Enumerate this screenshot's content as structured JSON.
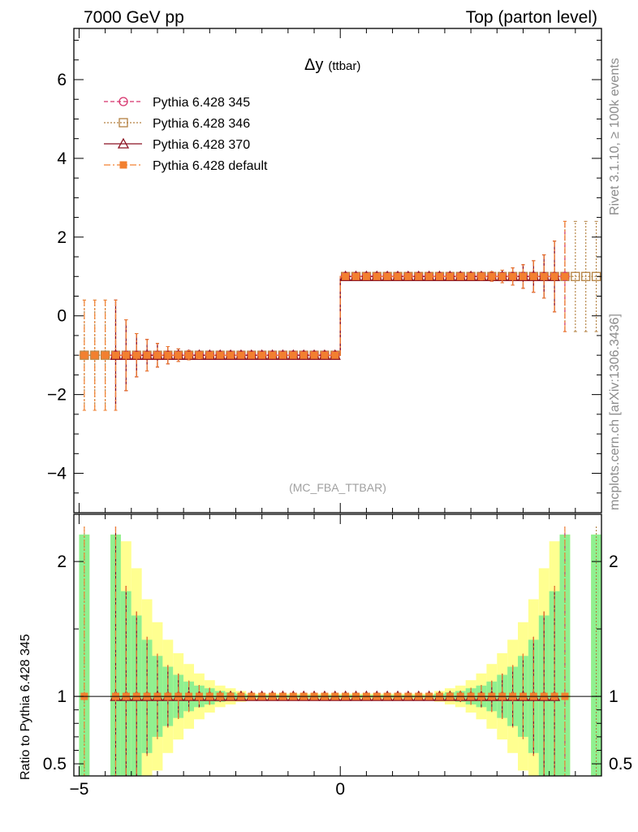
{
  "header": {
    "left_title": "7000 GeV pp",
    "right_title": "Top (parton level)"
  },
  "plot_title": "Δy",
  "plot_title_sub": "(ttbar)",
  "analysis_label": "(MC_FBA_TTBAR)",
  "side_texts": {
    "rivet": "Rivet 3.1.10, ≥ 100k events",
    "mcplots": "mcplots.cern.ch [arXiv:1306.3436]"
  },
  "ratio_ylabel": "Ratio to Pythia 6.428 345",
  "legend": [
    {
      "label": "Pythia 6.428 345",
      "color": "#d6336c",
      "marker": "circle-open",
      "dash": "5,3"
    },
    {
      "label": "Pythia 6.428 346",
      "color": "#b38040",
      "marker": "square-open",
      "dash": "2,2"
    },
    {
      "label": "Pythia 6.428 370",
      "color": "#8b1020",
      "marker": "triangle-open",
      "dash": ""
    },
    {
      "label": "Pythia 6.428 default",
      "color": "#f28030",
      "marker": "square-filled",
      "dash": "8,3,2,3"
    }
  ],
  "chart_data": [
    {
      "type": "line",
      "panel": "main",
      "xlim": [
        -5.1,
        5.0
      ],
      "ylim": [
        -5.0,
        7.3
      ],
      "yticks": [
        "−4",
        "−2",
        "0",
        "2",
        "4",
        "6"
      ],
      "xticks": [
        "−5",
        "0"
      ],
      "bin_width": 0.2,
      "series": [
        {
          "name": "Pythia 6.428 345",
          "x_from": -4.3,
          "x_to": 4.3,
          "values_left": -1.0,
          "values_right": 1.0
        },
        {
          "name": "Pythia 6.428 346",
          "x_from": -4.9,
          "x_to": 4.9,
          "values_left": -1.0,
          "values_right": 1.0
        },
        {
          "name": "Pythia 6.428 370",
          "x_from": -4.3,
          "x_to": 4.1,
          "values_left": -1.0,
          "values_right": 1.0
        },
        {
          "name": "Pythia 6.428 default",
          "x_from": -4.9,
          "x_to": 4.3,
          "values_left": -1.0,
          "values_right": 1.0
        }
      ],
      "error_profile": [
        {
          "absx": 4.9,
          "err": 1.4
        },
        {
          "absx": 4.7,
          "err": 1.4
        },
        {
          "absx": 4.5,
          "err": 1.4
        },
        {
          "absx": 4.3,
          "err": 1.4
        },
        {
          "absx": 4.1,
          "err": 0.9
        },
        {
          "absx": 3.9,
          "err": 0.55
        },
        {
          "absx": 3.7,
          "err": 0.4
        },
        {
          "absx": 3.5,
          "err": 0.3
        },
        {
          "absx": 3.3,
          "err": 0.22
        },
        {
          "absx": 3.1,
          "err": 0.16
        },
        {
          "absx": 2.9,
          "err": 0.12
        },
        {
          "absx": 2.7,
          "err": 0.09
        },
        {
          "absx": 2.5,
          "err": 0.07
        },
        {
          "absx": 0.0,
          "err": 0.03
        }
      ]
    },
    {
      "type": "line",
      "panel": "ratio",
      "ylim": [
        0.41,
        2.35
      ],
      "yticks": [
        "0.5",
        "1",
        "2"
      ],
      "reference_value": 1.0,
      "band_profile": [
        {
          "absx": 4.3,
          "green": 1.2,
          "yellow": 1.2
        },
        {
          "absx": 4.1,
          "green": 0.78,
          "yellow": 1.15
        },
        {
          "absx": 3.9,
          "green": 0.6,
          "yellow": 0.95
        },
        {
          "absx": 3.7,
          "green": 0.42,
          "yellow": 0.72
        },
        {
          "absx": 3.5,
          "green": 0.3,
          "yellow": 0.55
        },
        {
          "absx": 3.3,
          "green": 0.22,
          "yellow": 0.42
        },
        {
          "absx": 3.1,
          "green": 0.16,
          "yellow": 0.32
        },
        {
          "absx": 2.9,
          "green": 0.11,
          "yellow": 0.24
        },
        {
          "absx": 2.7,
          "green": 0.08,
          "yellow": 0.17
        },
        {
          "absx": 2.5,
          "green": 0.06,
          "yellow": 0.12
        },
        {
          "absx": 2.3,
          "green": 0.04,
          "yellow": 0.08
        },
        {
          "absx": 2.1,
          "green": 0.03,
          "yellow": 0.06
        },
        {
          "absx": 1.9,
          "green": 0.02,
          "yellow": 0.04
        },
        {
          "absx": 0.0,
          "green": 0.01,
          "yellow": 0.02
        }
      ]
    }
  ],
  "colors": {
    "band_green": "#90f090",
    "band_yellow": "#ffff90"
  }
}
